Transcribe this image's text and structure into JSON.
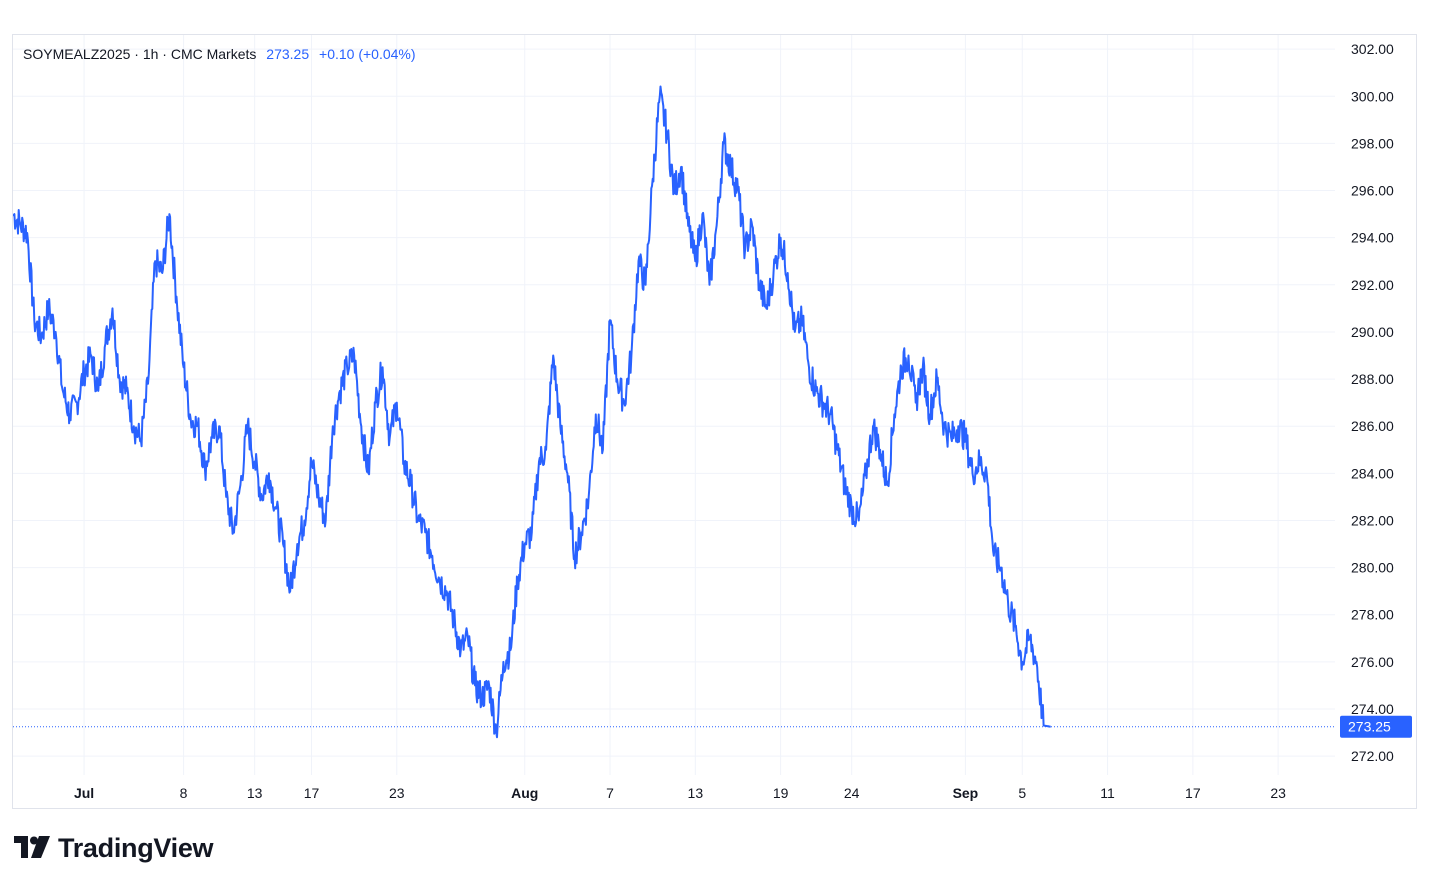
{
  "header": {
    "symbol_line": "SOYMEALZ2025 · 1h · CMC Markets",
    "last_price": "273.25",
    "change": "+0.10 (+0.04%)"
  },
  "brand": {
    "name": "TradingView",
    "icon": "tradingview-logo-icon"
  },
  "colors": {
    "line": "#2962ff",
    "grid": "#f0f3fa",
    "label_bg": "#2962ff"
  },
  "chart_data": {
    "type": "line",
    "title": "SOYMEALZ2025 · 1h · CMC Markets",
    "xlabel": "",
    "ylabel": "",
    "ylim": [
      271.2,
      302.6
    ],
    "y_ticks": [
      "272.00",
      "274.00",
      "276.00",
      "278.00",
      "280.00",
      "282.00",
      "284.00",
      "286.00",
      "288.00",
      "290.00",
      "292.00",
      "294.00",
      "296.00",
      "298.00",
      "300.00",
      "302.00"
    ],
    "x_ticks": [
      {
        "label": "Jul",
        "date": "2025-07-01",
        "major": true
      },
      {
        "label": "8",
        "date": "2025-07-08",
        "major": false
      },
      {
        "label": "13",
        "date": "2025-07-13",
        "major": false
      },
      {
        "label": "17",
        "date": "2025-07-17",
        "major": false
      },
      {
        "label": "23",
        "date": "2025-07-23",
        "major": false
      },
      {
        "label": "Aug",
        "date": "2025-08-01",
        "major": true
      },
      {
        "label": "7",
        "date": "2025-08-07",
        "major": false
      },
      {
        "label": "13",
        "date": "2025-08-13",
        "major": false
      },
      {
        "label": "19",
        "date": "2025-08-19",
        "major": false
      },
      {
        "label": "24",
        "date": "2025-08-24",
        "major": false
      },
      {
        "label": "Sep",
        "date": "2025-09-01",
        "major": true
      },
      {
        "label": "5",
        "date": "2025-09-05",
        "major": false
      },
      {
        "label": "11",
        "date": "2025-09-11",
        "major": false
      },
      {
        "label": "17",
        "date": "2025-09-17",
        "major": false
      },
      {
        "label": "23",
        "date": "2025-09-23",
        "major": false
      }
    ],
    "last_value_label": "273.25",
    "last_value": 273.25,
    "series": [
      {
        "points": [
          [
            "2025-06-26",
            295.0
          ],
          [
            "2025-06-26T12",
            294.6
          ],
          [
            "2025-06-27",
            294.2
          ],
          [
            "2025-06-27T12",
            290.5
          ],
          [
            "2025-06-28",
            289.8
          ],
          [
            "2025-06-28T12",
            291.0
          ],
          [
            "2025-06-29",
            290.0
          ],
          [
            "2025-06-29T12",
            287.5
          ],
          [
            "2025-06-30",
            286.5
          ],
          [
            "2025-06-30T12",
            287.0
          ],
          [
            "2025-07-01",
            288.3
          ],
          [
            "2025-07-01T12",
            289.0
          ],
          [
            "2025-07-02",
            287.5
          ],
          [
            "2025-07-02T12",
            289.5
          ],
          [
            "2025-07-03",
            291.0
          ],
          [
            "2025-07-03T12",
            288.0
          ],
          [
            "2025-07-04",
            287.5
          ],
          [
            "2025-07-04T12",
            286.0
          ],
          [
            "2025-07-05",
            285.4
          ],
          [
            "2025-07-05T12",
            287.8
          ],
          [
            "2025-07-06",
            293.0
          ],
          [
            "2025-07-06T12",
            292.5
          ],
          [
            "2025-07-07",
            295.0
          ],
          [
            "2025-07-07T12",
            291.5
          ],
          [
            "2025-07-08",
            288.5
          ],
          [
            "2025-07-08T12",
            286.3
          ],
          [
            "2025-07-09",
            286.0
          ],
          [
            "2025-07-09T12",
            284.2
          ],
          [
            "2025-07-10",
            285.5
          ],
          [
            "2025-07-10T12",
            286.0
          ],
          [
            "2025-07-11",
            283.0
          ],
          [
            "2025-07-11T12",
            281.5
          ],
          [
            "2025-07-12",
            283.5
          ],
          [
            "2025-07-12T12",
            286.0
          ],
          [
            "2025-07-13",
            284.5
          ],
          [
            "2025-07-13T12",
            283.0
          ],
          [
            "2025-07-14",
            284.0
          ],
          [
            "2025-07-14T12",
            282.5
          ],
          [
            "2025-07-15",
            281.0
          ],
          [
            "2025-07-15T12",
            279.0
          ],
          [
            "2025-07-16",
            281.0
          ],
          [
            "2025-07-16T12",
            282.0
          ],
          [
            "2025-07-17",
            284.5
          ],
          [
            "2025-07-17T12",
            283.0
          ],
          [
            "2025-07-18",
            282.0
          ],
          [
            "2025-07-18T12",
            286.0
          ],
          [
            "2025-07-19",
            287.5
          ],
          [
            "2025-07-19T12",
            288.5
          ],
          [
            "2025-07-20",
            289.0
          ],
          [
            "2025-07-20T12",
            286.0
          ],
          [
            "2025-07-21",
            284.0
          ],
          [
            "2025-07-21T12",
            287.0
          ],
          [
            "2025-07-22",
            288.5
          ],
          [
            "2025-07-22T12",
            285.5
          ],
          [
            "2025-07-23",
            287.0
          ],
          [
            "2025-07-23T12",
            284.5
          ],
          [
            "2025-07-24",
            283.5
          ],
          [
            "2025-07-24T12",
            282.0
          ],
          [
            "2025-07-25",
            281.5
          ],
          [
            "2025-07-25T12",
            280.5
          ],
          [
            "2025-07-26",
            279.5
          ],
          [
            "2025-07-26T12",
            279.0
          ],
          [
            "2025-07-27",
            277.8
          ],
          [
            "2025-07-27T12",
            276.5
          ],
          [
            "2025-07-28",
            277.0
          ],
          [
            "2025-07-28T12",
            275.0
          ],
          [
            "2025-07-29",
            274.5
          ],
          [
            "2025-07-29T12",
            275.0
          ],
          [
            "2025-07-30",
            273.0
          ],
          [
            "2025-07-30T12",
            276.0
          ],
          [
            "2025-07-31",
            276.5
          ],
          [
            "2025-07-31T12",
            279.5
          ],
          [
            "2025-08-01",
            281.0
          ],
          [
            "2025-08-01T12",
            281.5
          ],
          [
            "2025-08-02",
            284.5
          ],
          [
            "2025-08-02T12",
            285.0
          ],
          [
            "2025-08-03",
            289.0
          ],
          [
            "2025-08-03T12",
            286.0
          ],
          [
            "2025-08-04",
            284.0
          ],
          [
            "2025-08-04T12",
            280.5
          ],
          [
            "2025-08-05",
            281.5
          ],
          [
            "2025-08-05T12",
            283.0
          ],
          [
            "2025-08-06",
            286.5
          ],
          [
            "2025-08-06T12",
            285.0
          ],
          [
            "2025-08-07",
            290.5
          ],
          [
            "2025-08-07T12",
            288.0
          ],
          [
            "2025-08-08",
            287.0
          ],
          [
            "2025-08-08T12",
            289.0
          ],
          [
            "2025-08-09",
            293.0
          ],
          [
            "2025-08-09T12",
            292.0
          ],
          [
            "2025-08-10",
            296.5
          ],
          [
            "2025-08-10T12",
            300.0
          ],
          [
            "2025-08-11",
            298.5
          ],
          [
            "2025-08-11T12",
            296.0
          ],
          [
            "2025-08-12",
            297.0
          ],
          [
            "2025-08-12T12",
            294.5
          ],
          [
            "2025-08-13",
            293.0
          ],
          [
            "2025-08-13T12",
            295.0
          ],
          [
            "2025-08-14",
            292.0
          ],
          [
            "2025-08-14T12",
            294.5
          ],
          [
            "2025-08-15",
            298.0
          ],
          [
            "2025-08-15T12",
            297.0
          ],
          [
            "2025-08-16",
            296.0
          ],
          [
            "2025-08-16T12",
            293.5
          ],
          [
            "2025-08-17",
            294.5
          ],
          [
            "2025-08-17T12",
            292.0
          ],
          [
            "2025-08-18",
            291.0
          ],
          [
            "2025-08-18T12",
            292.5
          ],
          [
            "2025-08-19",
            294.0
          ],
          [
            "2025-08-19T12",
            292.5
          ],
          [
            "2025-08-20",
            290.0
          ],
          [
            "2025-08-20T12",
            290.5
          ],
          [
            "2025-08-21",
            288.5
          ],
          [
            "2025-08-21T12",
            287.5
          ],
          [
            "2025-08-22",
            287.0
          ],
          [
            "2025-08-22T12",
            286.5
          ],
          [
            "2025-08-23",
            285.0
          ],
          [
            "2025-08-23T12",
            283.5
          ],
          [
            "2025-08-24",
            282.5
          ],
          [
            "2025-08-24T12",
            282.0
          ],
          [
            "2025-08-25",
            284.0
          ],
          [
            "2025-08-25T12",
            286.0
          ],
          [
            "2025-08-26",
            285.0
          ],
          [
            "2025-08-26T12",
            283.5
          ],
          [
            "2025-08-27",
            286.5
          ],
          [
            "2025-08-27T12",
            288.5
          ],
          [
            "2025-08-28",
            289.0
          ],
          [
            "2025-08-28T12",
            287.0
          ],
          [
            "2025-08-29",
            288.5
          ],
          [
            "2025-08-29T12",
            286.5
          ],
          [
            "2025-08-30",
            288.0
          ],
          [
            "2025-08-30T12",
            286.0
          ],
          [
            "2025-08-31",
            285.5
          ],
          [
            "2025-08-31T12",
            286.0
          ],
          [
            "2025-09-01",
            285.5
          ],
          [
            "2025-09-01T12",
            284.0
          ],
          [
            "2025-09-02",
            284.5
          ],
          [
            "2025-09-02T12",
            284.0
          ],
          [
            "2025-09-03",
            280.5
          ],
          [
            "2025-09-03T12",
            280.0
          ],
          [
            "2025-09-04",
            278.5
          ],
          [
            "2025-09-04T12",
            277.5
          ],
          [
            "2025-09-05",
            276.0
          ],
          [
            "2025-09-05T12",
            277.0
          ],
          [
            "2025-09-06",
            276.0
          ],
          [
            "2025-09-06T12",
            273.3
          ],
          [
            "2025-09-07",
            273.25
          ]
        ]
      }
    ]
  }
}
